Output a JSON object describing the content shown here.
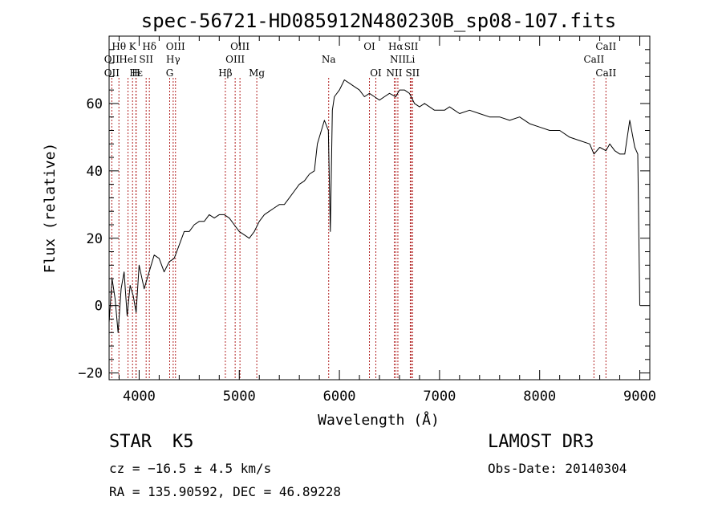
{
  "chart_data": {
    "type": "line",
    "title": "spec-56721-HD085912N480230B_sp08-107.fits",
    "xlabel": "Wavelength (Å)",
    "ylabel": "Flux (relative)",
    "xlim": [
      3700,
      9100
    ],
    "ylim": [
      -22,
      80
    ],
    "x_ticks": [
      4000,
      5000,
      6000,
      7000,
      8000,
      9000
    ],
    "x_tick_labels": [
      "4000",
      "5000",
      "6000",
      "7000",
      "8000",
      "9000"
    ],
    "y_ticks": [
      -20,
      0,
      20,
      40,
      60
    ],
    "y_tick_labels": [
      "−20",
      "0",
      "20",
      "40",
      "60"
    ],
    "series": [
      {
        "name": "flux",
        "x": [
          3700,
          3730,
          3760,
          3790,
          3820,
          3850,
          3880,
          3910,
          3940,
          3970,
          4000,
          4050,
          4100,
          4150,
          4200,
          4250,
          4300,
          4350,
          4400,
          4450,
          4500,
          4550,
          4600,
          4650,
          4700,
          4750,
          4800,
          4850,
          4900,
          4950,
          5000,
          5050,
          5100,
          5150,
          5200,
          5250,
          5300,
          5350,
          5400,
          5450,
          5500,
          5550,
          5600,
          5650,
          5700,
          5750,
          5780,
          5800,
          5850,
          5890,
          5910,
          5930,
          5950,
          6000,
          6050,
          6100,
          6150,
          6200,
          6250,
          6300,
          6350,
          6400,
          6450,
          6500,
          6563,
          6600,
          6650,
          6700,
          6750,
          6800,
          6850,
          6900,
          6950,
          7000,
          7050,
          7100,
          7150,
          7200,
          7300,
          7400,
          7500,
          7600,
          7700,
          7800,
          7900,
          8000,
          8100,
          8200,
          8300,
          8400,
          8500,
          8542,
          8600,
          8662,
          8700,
          8750,
          8800,
          8850,
          8900,
          8950,
          8980,
          9000
        ],
        "values": [
          -5,
          8,
          2,
          -8,
          5,
          10,
          -3,
          6,
          3,
          -2,
          12,
          5,
          10,
          15,
          14,
          10,
          13,
          14,
          18,
          22,
          22,
          24,
          25,
          25,
          27,
          26,
          27,
          27,
          26,
          24,
          22,
          21,
          20,
          22,
          25,
          27,
          28,
          29,
          30,
          30,
          32,
          34,
          36,
          37,
          39,
          40,
          48,
          50,
          55,
          52,
          22,
          58,
          62,
          64,
          67,
          66,
          65,
          64,
          62,
          63,
          62,
          61,
          62,
          63,
          62,
          64,
          64,
          63,
          60,
          59,
          60,
          59,
          58,
          58,
          58,
          59,
          58,
          57,
          58,
          57,
          56,
          56,
          55,
          56,
          54,
          53,
          52,
          52,
          50,
          49,
          48,
          45,
          47,
          46,
          48,
          46,
          45,
          45,
          55,
          47,
          45,
          0
        ]
      }
    ],
    "lines": [
      {
        "label": "Hθ",
        "x": 3798,
        "row": 1
      },
      {
        "label": "K",
        "x": 3934,
        "row": 1
      },
      {
        "label": "Hδ",
        "x": 4102,
        "row": 1
      },
      {
        "label": "OIII",
        "x": 4363,
        "row": 1
      },
      {
        "label": "OIII",
        "x": 5007,
        "row": 1
      },
      {
        "label": "OI",
        "x": 6300,
        "row": 1
      },
      {
        "label": "Hα",
        "x": 6563,
        "row": 1
      },
      {
        "label": "SII",
        "x": 6717,
        "row": 1
      },
      {
        "label": "CaII",
        "x": 8662,
        "row": 1
      },
      {
        "label": "OII",
        "x": 3727,
        "row": 2
      },
      {
        "label": "HeI",
        "x": 3889,
        "row": 2
      },
      {
        "label": "SII",
        "x": 4070,
        "row": 2
      },
      {
        "label": "Hγ",
        "x": 4340,
        "row": 2
      },
      {
        "label": "OIII",
        "x": 4959,
        "row": 2
      },
      {
        "label": "Na",
        "x": 5893,
        "row": 2
      },
      {
        "label": "NII",
        "x": 6584,
        "row": 2
      },
      {
        "label": "Li",
        "x": 6708,
        "row": 2
      },
      {
        "label": "CaII",
        "x": 8542,
        "row": 2
      },
      {
        "label": "OII",
        "x": 3727,
        "row": 3
      },
      {
        "label": "Hε",
        "x": 3970,
        "row": 3
      },
      {
        "label": "H",
        "x": 3968,
        "row": 3
      },
      {
        "label": "G",
        "x": 4305,
        "row": 3
      },
      {
        "label": "Hβ",
        "x": 4861,
        "row": 3
      },
      {
        "label": "Mg",
        "x": 5175,
        "row": 3
      },
      {
        "label": "OI",
        "x": 6364,
        "row": 3
      },
      {
        "label": "NII",
        "x": 6548,
        "row": 3
      },
      {
        "label": "SII",
        "x": 6731,
        "row": 3
      },
      {
        "label": "CaII",
        "x": 8662,
        "row": 3
      }
    ]
  },
  "info": {
    "object_class": "STAR",
    "subclass": "K5",
    "cz": "cz = −16.5 ± 4.5 km/s",
    "radec": "RA = 135.90592, DEC =  46.89228",
    "survey": "LAMOST DR3",
    "obs_date": "Obs-Date: 20140304"
  },
  "colors": {
    "spectrum": "#000000",
    "line_markers": "#b22222",
    "axes": "#000000"
  }
}
